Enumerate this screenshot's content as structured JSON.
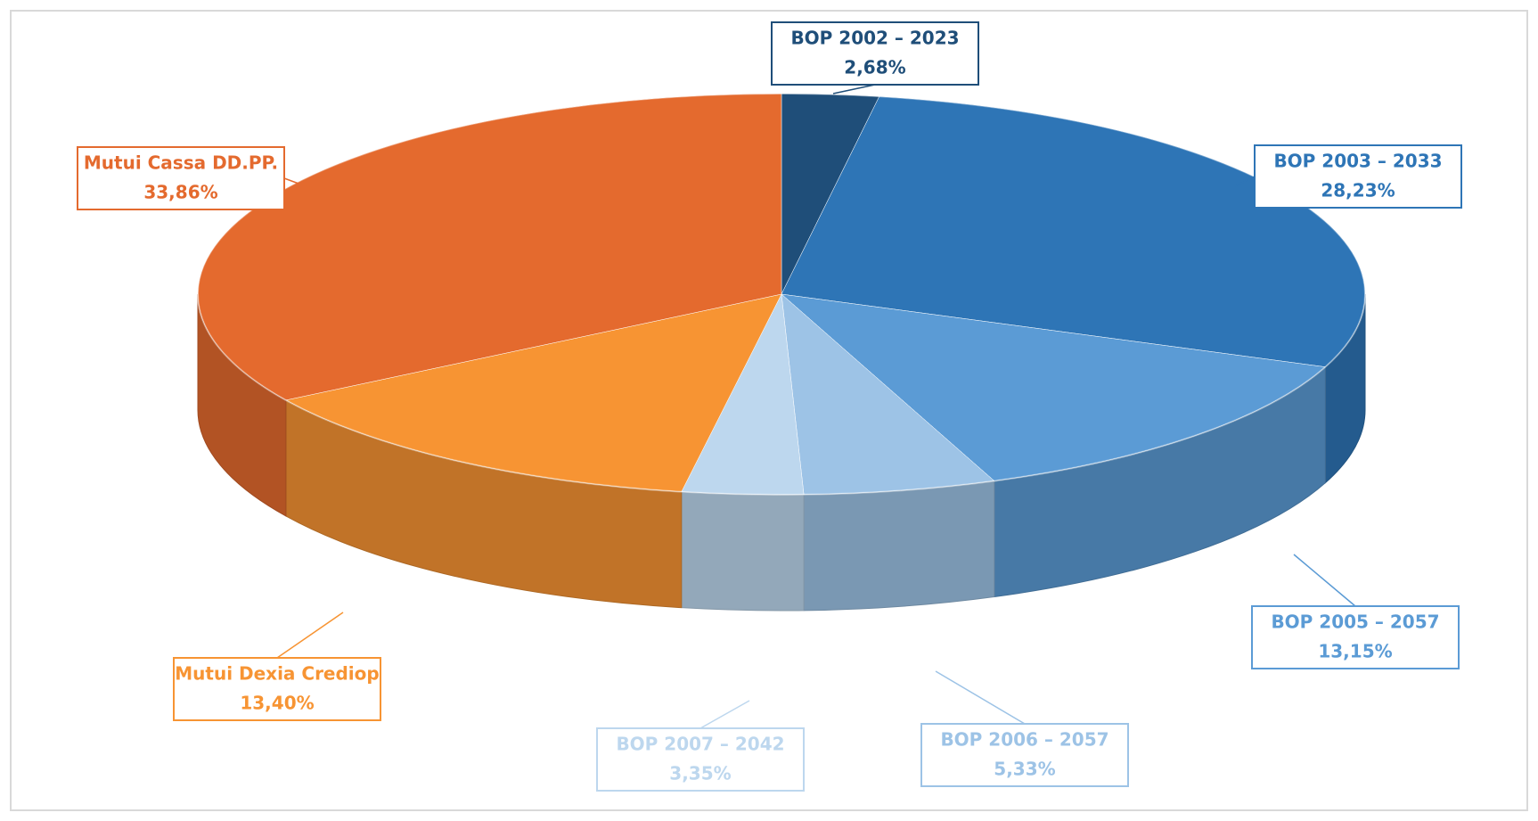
{
  "chart_data": {
    "type": "pie3d",
    "categories": [
      "BOP 2002 – 2023",
      "BOP 2003 – 2033",
      "BOP 2005 – 2057",
      "BOP 2006 – 2057",
      "BOP 2007 – 2042",
      "Mutui Dexia Crediop",
      "Mutui Cassa DD.PP."
    ],
    "values": [
      2.68,
      28.23,
      13.15,
      5.33,
      3.35,
      13.4,
      33.86
    ],
    "value_labels": [
      "2,68%",
      "28,23%",
      "13,15%",
      "5,33%",
      "3,35%",
      "13,40%",
      "33,86%"
    ],
    "colors": [
      "#1f4e79",
      "#2e75b6",
      "#5b9bd5",
      "#9dc3e6",
      "#bdd7ee",
      "#f79433",
      "#e46a2e"
    ]
  }
}
